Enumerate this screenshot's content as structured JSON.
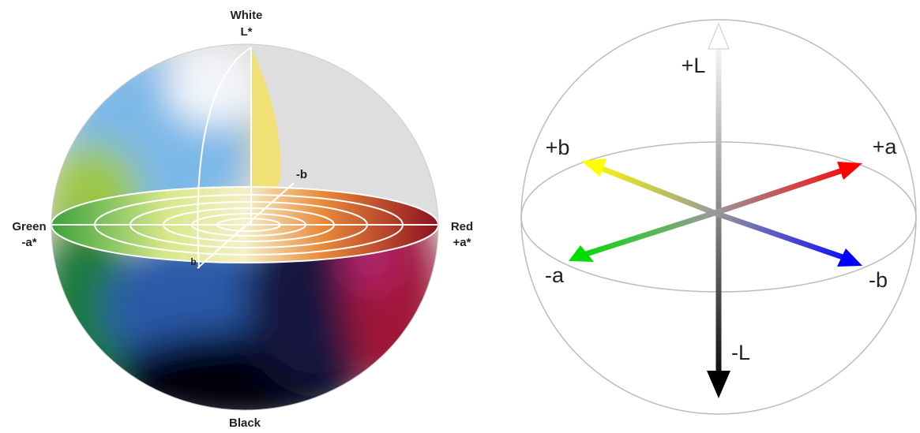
{
  "left_sphere": {
    "top_label": "White",
    "top_axis": "L*",
    "back_label": "-b",
    "left_label": "Green",
    "left_axis": "-a*",
    "right_label": "Red",
    "right_axis": "+a*",
    "front_label": "b",
    "bottom_label": "Black"
  },
  "right_sphere": {
    "up": "+L",
    "down": "-L",
    "plus_a": "+a",
    "minus_a": "-a",
    "plus_b": "+b",
    "minus_b": "-b"
  }
}
